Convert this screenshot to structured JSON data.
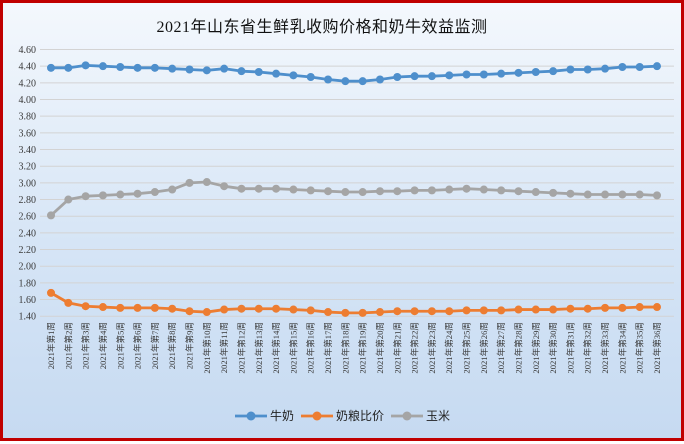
{
  "frame": {
    "border_color": "#c00000"
  },
  "title": "2021年山东省生鲜乳收购价格和奶牛效益监测",
  "chart_data": {
    "type": "line",
    "title": "2021年山东省生鲜乳收购价格和奶牛效益监测",
    "grid": true,
    "legend_position": "bottom",
    "xlabel": "",
    "ylabel": "",
    "ylim": [
      1.4,
      4.6
    ],
    "y_step": 0.2,
    "y_tick_labels": [
      "4.60",
      "4.40",
      "4.20",
      "4.00",
      "3.80",
      "3.60",
      "3.40",
      "3.20",
      "3.00",
      "2.80",
      "2.60",
      "2.40",
      "2.20",
      "2.00",
      "1.80",
      "1.60",
      "1.40"
    ],
    "categories": [
      "2021年第1周",
      "2021年第2周",
      "2021年第3周",
      "2021年第4周",
      "2021年第5周",
      "2021年第6周",
      "2021年第7周",
      "2021年第8周",
      "2021年第9周",
      "2021年第10周",
      "2021年第11周",
      "2021年第12周",
      "2021年第13周",
      "2021年第14周",
      "2021年第15周",
      "2021年第16周",
      "2021年第17周",
      "2021年第18周",
      "2021年第19周",
      "2021年第20周",
      "2021年第21周",
      "2021年第22周",
      "2021年第23周",
      "2021年第24周",
      "2021年第25周",
      "2021年第26周",
      "2021年第27周",
      "2021年第28周",
      "2021年第29周",
      "2021年第30周",
      "2021年第31周",
      "2021年第32周",
      "2021年第33周",
      "2021年第34周",
      "2021年第35周",
      "2021年第36周"
    ],
    "series": [
      {
        "name": "牛奶",
        "color": "#4e8fcc",
        "values": [
          4.38,
          4.38,
          4.41,
          4.4,
          4.39,
          4.38,
          4.38,
          4.37,
          4.36,
          4.35,
          4.37,
          4.34,
          4.33,
          4.31,
          4.29,
          4.27,
          4.24,
          4.22,
          4.22,
          4.24,
          4.27,
          4.28,
          4.28,
          4.29,
          4.3,
          4.3,
          4.31,
          4.32,
          4.33,
          4.34,
          4.36,
          4.36,
          4.37,
          4.39,
          4.39,
          4.4
        ]
      },
      {
        "name": "奶粮比价",
        "color": "#ed7d31",
        "values": [
          1.68,
          1.56,
          1.52,
          1.51,
          1.5,
          1.5,
          1.5,
          1.49,
          1.46,
          1.45,
          1.48,
          1.49,
          1.49,
          1.49,
          1.48,
          1.47,
          1.45,
          1.44,
          1.44,
          1.45,
          1.46,
          1.46,
          1.46,
          1.46,
          1.47,
          1.47,
          1.47,
          1.48,
          1.48,
          1.48,
          1.49,
          1.49,
          1.5,
          1.5,
          1.51,
          1.51
        ]
      },
      {
        "name": "玉米",
        "color": "#a5a5a5",
        "values": [
          2.61,
          2.8,
          2.84,
          2.85,
          2.86,
          2.87,
          2.89,
          2.92,
          3.0,
          3.01,
          2.96,
          2.93,
          2.93,
          2.93,
          2.92,
          2.91,
          2.9,
          2.89,
          2.89,
          2.9,
          2.9,
          2.91,
          2.91,
          2.92,
          2.93,
          2.92,
          2.91,
          2.9,
          2.89,
          2.88,
          2.87,
          2.86,
          2.86,
          2.86,
          2.86,
          2.85
        ]
      }
    ]
  }
}
